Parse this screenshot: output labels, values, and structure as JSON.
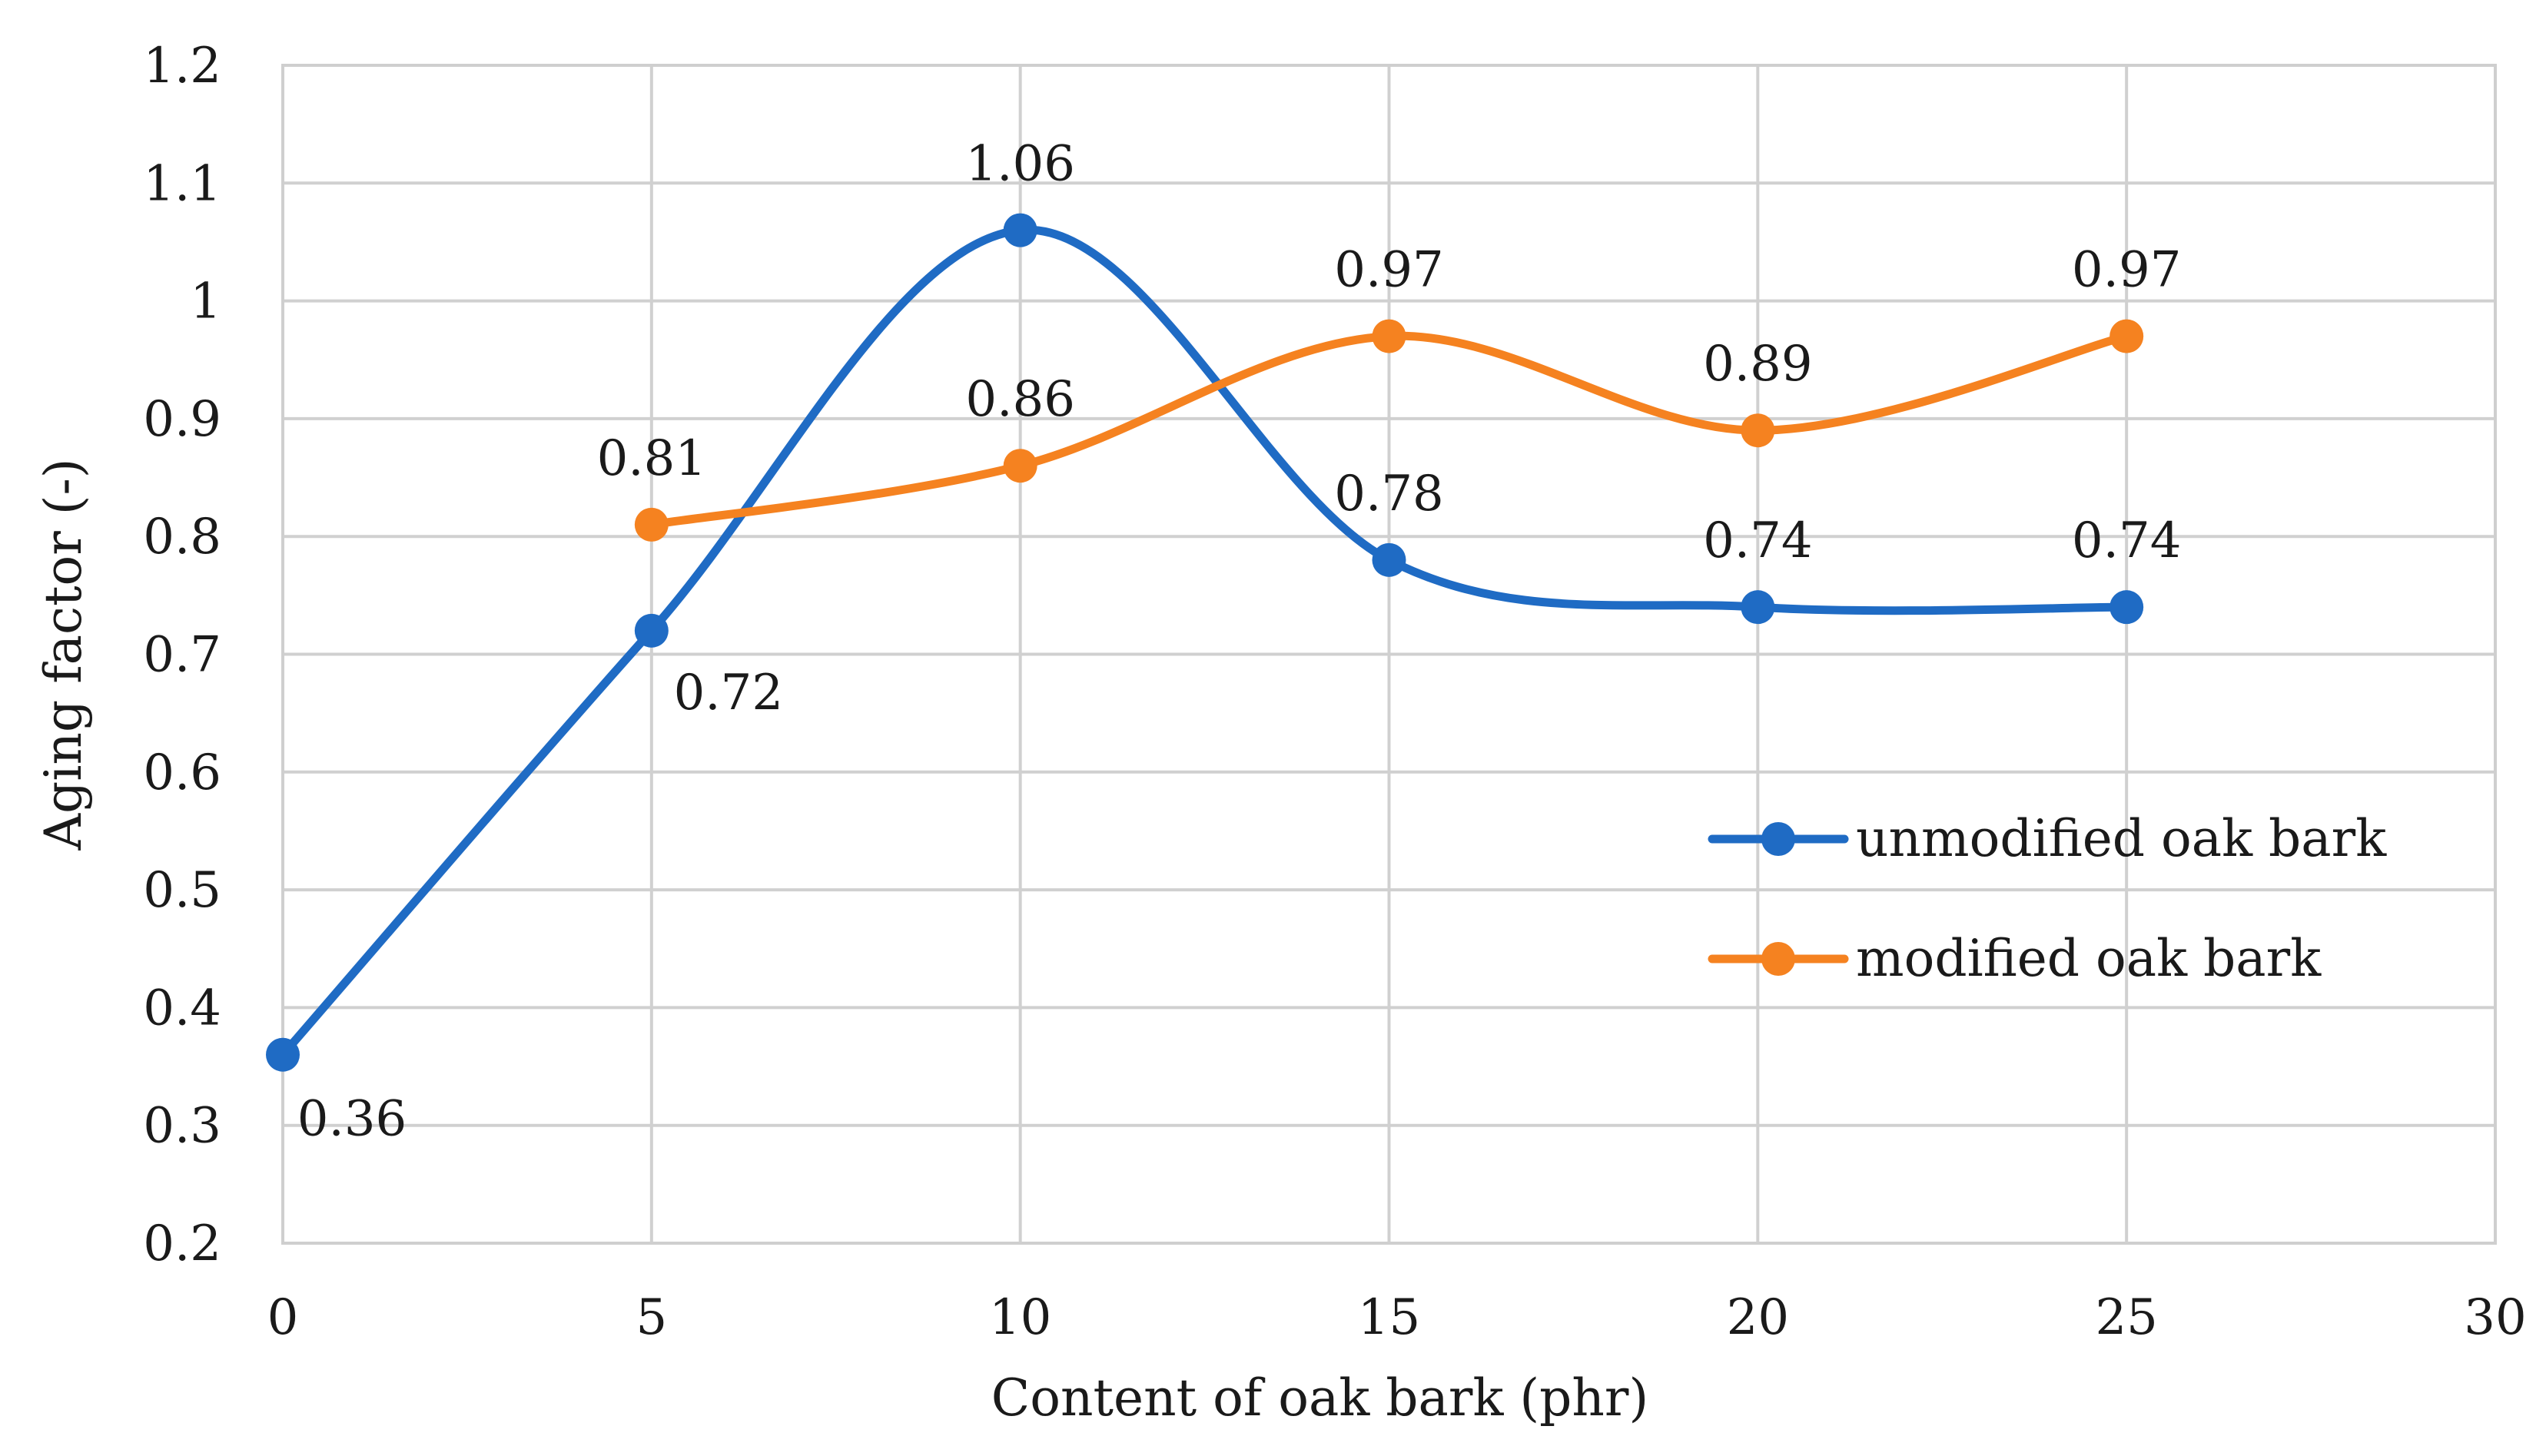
{
  "chart_data": {
    "type": "line",
    "smooth": true,
    "xlabel": "Content of oak bark (phr)",
    "ylabel": "Aging factor (-)",
    "xlim": [
      0,
      30
    ],
    "ylim": [
      0.2,
      1.2
    ],
    "x_ticks": [
      "0",
      "5",
      "10",
      "15",
      "20",
      "25",
      "30"
    ],
    "y_ticks": [
      "0.2",
      "0.3",
      "0.4",
      "0.5",
      "0.6",
      "0.7",
      "0.8",
      "0.9",
      "1",
      "1.1",
      "1.2"
    ],
    "grid": true,
    "legend_position": "right",
    "series": [
      {
        "name": "unmodified oak bark",
        "color": "#1f6bc4",
        "x": [
          0,
          5,
          10,
          15,
          20,
          25
        ],
        "values": [
          0.36,
          0.72,
          1.06,
          0.78,
          0.74,
          0.74
        ],
        "labels": [
          "0.36",
          "0.72",
          "1.06",
          "0.78",
          "0.74",
          "0.74"
        ]
      },
      {
        "name": "modified oak bark",
        "color": "#f58220",
        "x": [
          5,
          10,
          15,
          20,
          25
        ],
        "values": [
          0.81,
          0.86,
          0.97,
          0.89,
          0.97
        ],
        "labels": [
          "0.81",
          "0.86",
          "0.97",
          "0.89",
          "0.97"
        ]
      }
    ]
  }
}
